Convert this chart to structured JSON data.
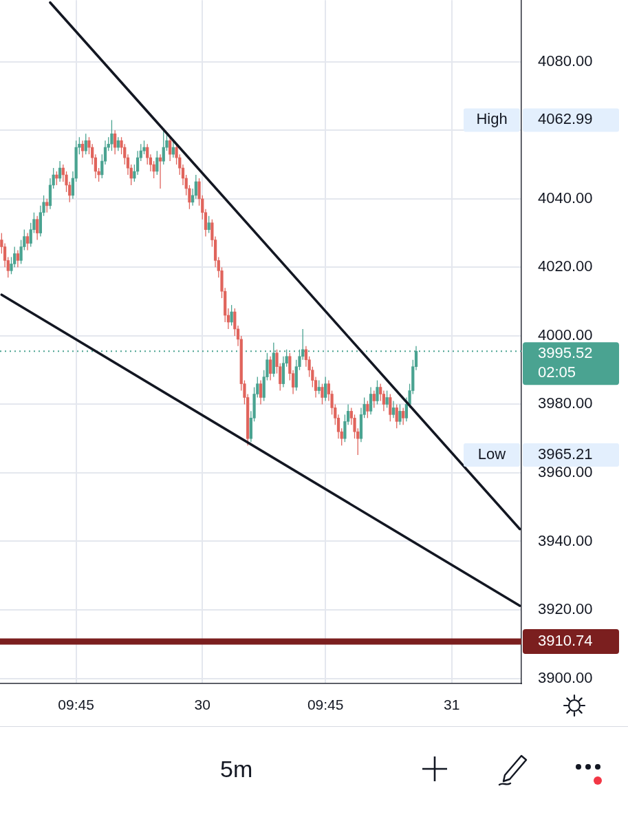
{
  "chart_data": {
    "type": "candlestick",
    "categories": [
      null,
      null,
      null,
      null,
      null,
      null,
      null,
      null,
      null,
      null,
      null,
      null,
      null,
      null,
      null,
      null,
      null,
      null,
      null,
      null,
      null,
      null,
      null,
      "09:45",
      null,
      null,
      null,
      null,
      null,
      null,
      null,
      null,
      null,
      null,
      null,
      null,
      null,
      null,
      null,
      null,
      null,
      null,
      null,
      null,
      null,
      null,
      null,
      null,
      null,
      null,
      null,
      null,
      null,
      null,
      null,
      null,
      null,
      null,
      null,
      null,
      null,
      null,
      "30",
      null,
      null,
      null,
      null,
      null,
      null,
      null,
      null,
      null,
      null,
      null,
      null,
      null,
      null,
      null,
      null,
      null,
      null,
      null,
      null,
      null,
      null,
      null,
      null,
      null,
      null,
      null,
      null,
      null,
      null,
      null,
      null,
      null,
      null,
      null,
      null,
      null,
      "09:45",
      null,
      null,
      null,
      null,
      null,
      null,
      null,
      null,
      null,
      null,
      null,
      null,
      null,
      null,
      null,
      null,
      null,
      null,
      null,
      null,
      null,
      null,
      null,
      null,
      null,
      null,
      null,
      null,
      null,
      null,
      null,
      null,
      null,
      null,
      null,
      null,
      null,
      null,
      "31",
      null,
      null,
      null,
      null,
      null,
      null,
      null,
      null,
      null,
      null,
      null,
      null,
      null,
      null,
      null,
      null,
      null,
      null,
      null,
      null,
      null
    ],
    "ohlc": [
      [
        4028,
        4030,
        4024,
        4026
      ],
      [
        4026,
        4027,
        4020,
        4022
      ],
      [
        4022,
        4023,
        4017,
        4019
      ],
      [
        4019,
        4023,
        4018,
        4021
      ],
      [
        4021,
        4026,
        4020,
        4024
      ],
      [
        4024,
        4025,
        4020,
        4022
      ],
      [
        4022,
        4028,
        4021,
        4026
      ],
      [
        4026,
        4031,
        4025,
        4029
      ],
      [
        4029,
        4030,
        4025,
        4027
      ],
      [
        4027,
        4033,
        4026,
        4031
      ],
      [
        4031,
        4036,
        4030,
        4034
      ],
      [
        4034,
        4035,
        4028,
        4030
      ],
      [
        4030,
        4038,
        4029,
        4036
      ],
      [
        4036,
        4041,
        4035,
        4039
      ],
      [
        4039,
        4040,
        4036,
        4038
      ],
      [
        4038,
        4046,
        4037,
        4044
      ],
      [
        4044,
        4049,
        4043,
        4047
      ],
      [
        4047,
        4048,
        4044,
        4046
      ],
      [
        4046,
        4051,
        4045,
        4049
      ],
      [
        4049,
        4050,
        4045,
        4047
      ],
      [
        4047,
        4048,
        4042,
        4044
      ],
      [
        4044,
        4045,
        4039,
        4041
      ],
      [
        4041,
        4048,
        4040,
        4046
      ],
      [
        4046,
        4057,
        4045,
        4055
      ],
      [
        4055,
        4058,
        4053,
        4056
      ],
      [
        4056,
        4057,
        4052,
        4054
      ],
      [
        4054,
        4059,
        4053,
        4057
      ],
      [
        4057,
        4058,
        4053,
        4055
      ],
      [
        4055,
        4056,
        4050,
        4052
      ],
      [
        4052,
        4053,
        4046,
        4048
      ],
      [
        4048,
        4049,
        4045,
        4047
      ],
      [
        4047,
        4053,
        4046,
        4051
      ],
      [
        4051,
        4057,
        4050,
        4055
      ],
      [
        4055,
        4058,
        4054,
        4056
      ],
      [
        4056,
        4062.99,
        4054,
        4059
      ],
      [
        4059,
        4060,
        4053,
        4055
      ],
      [
        4055,
        4058,
        4054,
        4057
      ],
      [
        4057,
        4058,
        4053,
        4055
      ],
      [
        4055,
        4056,
        4050,
        4052
      ],
      [
        4052,
        4053,
        4047,
        4049
      ],
      [
        4049,
        4050,
        4044,
        4046
      ],
      [
        4046,
        4050,
        4045,
        4048
      ],
      [
        4048,
        4054,
        4047,
        4052
      ],
      [
        4052,
        4056,
        4051,
        4054
      ],
      [
        4054,
        4057,
        4053,
        4055
      ],
      [
        4055,
        4056,
        4050,
        4052
      ],
      [
        4052,
        4053,
        4048,
        4050
      ],
      [
        4050,
        4051,
        4046,
        4048
      ],
      [
        4048,
        4054,
        4047,
        4052
      ],
      [
        4052,
        4053,
        4043,
        4051
      ],
      [
        4051,
        4060,
        4050,
        4055
      ],
      [
        4055,
        4059,
        4054,
        4057
      ],
      [
        4057,
        4058,
        4051,
        4053
      ],
      [
        4053,
        4057,
        4052,
        4055
      ],
      [
        4055,
        4056,
        4050,
        4052
      ],
      [
        4052,
        4053,
        4047,
        4049
      ],
      [
        4049,
        4050,
        4044,
        4046
      ],
      [
        4046,
        4047,
        4041,
        4043
      ],
      [
        4043,
        4044,
        4037,
        4039
      ],
      [
        4039,
        4043,
        4038,
        4041
      ],
      [
        4041,
        4047,
        4040,
        4045
      ],
      [
        4045,
        4046,
        4038,
        4040
      ],
      [
        4040,
        4041,
        4034,
        4036
      ],
      [
        4036,
        4037,
        4029,
        4031
      ],
      [
        4031,
        4035,
        4030,
        4033
      ],
      [
        4033,
        4034,
        4026,
        4028
      ],
      [
        4028,
        4029,
        4020,
        4022
      ],
      [
        4022,
        4023,
        4017,
        4019
      ],
      [
        4019,
        4020,
        4011,
        4013
      ],
      [
        4013,
        4014,
        4004,
        4006
      ],
      [
        4006,
        4008,
        4002,
        4004
      ],
      [
        4004,
        4009,
        4003,
        4007
      ],
      [
        4007,
        4008,
        4000,
        4002
      ],
      [
        4002,
        4003,
        3997,
        3999
      ],
      [
        3999,
        4000,
        3984,
        3986
      ],
      [
        3986,
        3987,
        3980,
        3982
      ],
      [
        3982,
        3983,
        3968,
        3970
      ],
      [
        3970,
        3978,
        3969,
        3976
      ],
      [
        3976,
        3985,
        3975,
        3983
      ],
      [
        3983,
        3988,
        3982,
        3986
      ],
      [
        3986,
        3987,
        3980,
        3982
      ],
      [
        3982,
        3990,
        3981,
        3988
      ],
      [
        3988,
        3995,
        3987,
        3993
      ],
      [
        3993,
        3994,
        3987,
        3989
      ],
      [
        3989,
        3998,
        3988,
        3995
      ],
      [
        3995,
        3996,
        3989,
        3991
      ],
      [
        3991,
        3992,
        3984,
        3986
      ],
      [
        3986,
        3994,
        3985,
        3992
      ],
      [
        3992,
        3996,
        3991,
        3994
      ],
      [
        3994,
        3995,
        3987,
        3989
      ],
      [
        3989,
        3990,
        3983,
        3985
      ],
      [
        3985,
        3993,
        3984,
        3991
      ],
      [
        3991,
        3996,
        3990,
        3994
      ],
      [
        3994,
        4002,
        3993,
        3996
      ],
      [
        3996,
        3997,
        3991,
        3993
      ],
      [
        3993,
        3994,
        3988,
        3990
      ],
      [
        3990,
        3991,
        3985,
        3987
      ],
      [
        3987,
        3988,
        3982,
        3984
      ],
      [
        3984,
        3987,
        3983,
        3985
      ],
      [
        3985,
        3986,
        3980,
        3982
      ],
      [
        3982,
        3988,
        3981,
        3986
      ],
      [
        3986,
        3987,
        3981,
        3983
      ],
      [
        3983,
        3984,
        3977,
        3979
      ],
      [
        3979,
        3980,
        3974,
        3976
      ],
      [
        3976,
        3977,
        3970,
        3972
      ],
      [
        3972,
        3973,
        3968,
        3970
      ],
      [
        3970,
        3977,
        3969,
        3975
      ],
      [
        3975,
        3980,
        3974,
        3978
      ],
      [
        3978,
        3979,
        3974,
        3976
      ],
      [
        3976,
        3977,
        3970,
        3972
      ],
      [
        3972,
        3973,
        3965.21,
        3970
      ],
      [
        3970,
        3979,
        3969,
        3977
      ],
      [
        3977,
        3982,
        3976,
        3980
      ],
      [
        3980,
        3981,
        3976,
        3978
      ],
      [
        3978,
        3985,
        3977,
        3983
      ],
      [
        3983,
        3984,
        3979,
        3981
      ],
      [
        3981,
        3987,
        3980,
        3985
      ],
      [
        3985,
        3986,
        3981,
        3983
      ],
      [
        3983,
        3984,
        3978,
        3980
      ],
      [
        3980,
        3984,
        3979,
        3982
      ],
      [
        3982,
        3983,
        3975,
        3977
      ],
      [
        3977,
        3981,
        3976,
        3979
      ],
      [
        3979,
        3980,
        3973,
        3975
      ],
      [
        3975,
        3980,
        3974,
        3978
      ],
      [
        3978,
        3979,
        3974,
        3976
      ],
      [
        3976,
        3982,
        3975,
        3980
      ],
      [
        3980,
        3986,
        3979,
        3984
      ],
      [
        3984,
        3993,
        3983,
        3991
      ],
      [
        3991,
        3997,
        3990,
        3995.52
      ],
      null,
      null,
      null,
      null,
      null,
      null,
      null,
      null,
      null,
      null,
      null,
      null,
      null,
      null,
      null,
      null,
      null,
      null,
      null,
      null,
      null,
      null,
      null,
      null,
      null,
      null,
      null,
      null,
      null,
      null,
      null,
      null
    ],
    "colors": [
      "#e0645c",
      "#e0645c",
      "#e0645c",
      "#4aa391",
      "#4aa391",
      "#e0645c",
      "#4aa391",
      "#4aa391",
      "#e0645c",
      "#4aa391",
      "#4aa391",
      "#e0645c",
      "#4aa391",
      "#4aa391",
      "#e0645c",
      "#4aa391",
      "#4aa391",
      "#e0645c",
      "#4aa391",
      "#e0645c",
      "#e0645c",
      "#e0645c",
      "#4aa391",
      "#4aa391",
      "#4aa391",
      "#e0645c",
      "#4aa391",
      "#e0645c",
      "#e0645c",
      "#e0645c",
      "#e0645c",
      "#4aa391",
      "#4aa391",
      "#4aa391",
      "#4aa391",
      "#e0645c",
      "#4aa391",
      "#e0645c",
      "#e0645c",
      "#e0645c",
      "#e0645c",
      "#4aa391",
      "#4aa391",
      "#4aa391",
      "#4aa391",
      "#e0645c",
      "#e0645c",
      "#e0645c",
      "#4aa391",
      "#e0645c",
      "#4aa391",
      "#4aa391",
      "#e0645c",
      "#4aa391",
      "#e0645c",
      "#e0645c",
      "#e0645c",
      "#e0645c",
      "#e0645c",
      "#4aa391",
      "#4aa391",
      "#e0645c",
      "#e0645c",
      "#e0645c",
      "#4aa391",
      "#e0645c",
      "#e0645c",
      "#e0645c",
      "#e0645c",
      "#e0645c",
      "#e0645c",
      "#4aa391",
      "#e0645c",
      "#e0645c",
      "#e0645c",
      "#e0645c",
      "#e0645c",
      "#4aa391",
      "#4aa391",
      "#4aa391",
      "#e0645c",
      "#4aa391",
      "#4aa391",
      "#e0645c",
      "#4aa391",
      "#e0645c",
      "#e0645c",
      "#4aa391",
      "#4aa391",
      "#e0645c",
      "#e0645c",
      "#4aa391",
      "#4aa391",
      "#4aa391",
      "#e0645c",
      "#e0645c",
      "#e0645c",
      "#e0645c",
      "#4aa391",
      "#e0645c",
      "#4aa391",
      "#e0645c",
      "#e0645c",
      "#e0645c",
      "#e0645c",
      "#e0645c",
      "#4aa391",
      "#4aa391",
      "#e0645c",
      "#e0645c",
      "#e0645c",
      "#4aa391",
      "#4aa391",
      "#e0645c",
      "#4aa391",
      "#e0645c",
      "#4aa391",
      "#e0645c",
      "#e0645c",
      "#4aa391",
      "#e0645c",
      "#4aa391",
      "#e0645c",
      "#4aa391",
      "#e0645c",
      "#4aa391",
      "#4aa391",
      "#4aa391",
      "#4aa391",
      null,
      null,
      null,
      null,
      null,
      null,
      null,
      null,
      null,
      null,
      null,
      null,
      null,
      null,
      null,
      null,
      null,
      null,
      null,
      null,
      null,
      null,
      null,
      null,
      null,
      null,
      null,
      null,
      null,
      null,
      null,
      null
    ],
    "series": [
      {
        "type": "line",
        "color": "#131722",
        "values": [
          null,
          null,
          null,
          null,
          null,
          null,
          null,
          null,
          null,
          null,
          null,
          null,
          null,
          null,
          null,
          4097.3,
          null,
          null,
          null,
          null,
          null,
          null,
          null,
          null,
          null,
          null,
          null,
          null,
          null,
          null,
          null,
          null,
          null,
          null,
          null,
          null,
          null,
          null,
          null,
          null,
          null,
          null,
          null,
          null,
          null,
          null,
          null,
          null,
          null,
          null,
          null,
          null,
          null,
          null,
          null,
          null,
          null,
          null,
          null,
          null,
          null,
          null,
          null,
          null,
          null,
          null,
          null,
          null,
          null,
          null,
          null,
          null,
          null,
          null,
          null,
          null,
          null,
          null,
          null,
          null,
          null,
          null,
          null,
          null,
          null,
          null,
          null,
          null,
          null,
          null,
          null,
          null,
          null,
          null,
          null,
          null,
          null,
          null,
          null,
          null,
          null,
          null,
          null,
          null,
          null,
          null,
          null,
          null,
          null,
          null,
          null,
          null,
          null,
          null,
          null,
          null,
          null,
          null,
          null,
          null,
          null,
          null,
          null,
          null,
          null,
          null,
          null,
          null,
          null,
          null,
          null,
          null,
          null,
          null,
          null,
          null,
          null,
          null,
          null,
          null,
          null,
          null,
          null,
          null,
          null,
          null,
          null,
          null,
          null,
          null,
          null,
          null,
          null,
          null,
          null,
          null,
          null,
          null,
          null,
          null,
          3943.6
        ]
      },
      {
        "type": "line",
        "color": "#131722",
        "values": [
          4012.0,
          null,
          null,
          null,
          null,
          null,
          null,
          null,
          null,
          null,
          null,
          null,
          null,
          null,
          null,
          null,
          null,
          null,
          null,
          null,
          null,
          null,
          null,
          null,
          null,
          null,
          null,
          null,
          null,
          null,
          null,
          null,
          null,
          null,
          null,
          null,
          null,
          null,
          null,
          null,
          null,
          null,
          null,
          null,
          null,
          null,
          null,
          null,
          null,
          null,
          null,
          null,
          null,
          null,
          null,
          null,
          null,
          null,
          null,
          null,
          null,
          null,
          null,
          null,
          null,
          null,
          null,
          null,
          null,
          null,
          null,
          null,
          null,
          null,
          null,
          null,
          null,
          null,
          null,
          null,
          null,
          null,
          null,
          null,
          null,
          null,
          null,
          null,
          null,
          null,
          null,
          null,
          null,
          null,
          null,
          null,
          null,
          null,
          null,
          null,
          null,
          null,
          null,
          null,
          null,
          null,
          null,
          null,
          null,
          null,
          null,
          null,
          null,
          null,
          null,
          null,
          null,
          null,
          null,
          null,
          null,
          null,
          null,
          null,
          null,
          null,
          null,
          null,
          null,
          null,
          null,
          null,
          null,
          null,
          null,
          null,
          null,
          null,
          null,
          null,
          null,
          null,
          null,
          null,
          null,
          null,
          null,
          null,
          null,
          null,
          null,
          null,
          null,
          null,
          null,
          null,
          null,
          null,
          null,
          null,
          3921.2
        ]
      }
    ],
    "ylim": [
      3898.5,
      4098
    ],
    "yticks": [
      {
        "value": 3900,
        "label": "3900.00"
      },
      {
        "value": 3920,
        "label": "3920.00"
      },
      {
        "value": 3940,
        "label": "3940.00"
      },
      {
        "value": 3960,
        "label": "3960.00"
      },
      {
        "value": 3980,
        "label": "3980.00"
      },
      {
        "value": 4000,
        "label": "4000.00"
      },
      {
        "value": 4020,
        "label": "4020.00"
      },
      {
        "value": 4040,
        "label": "4040.00"
      },
      {
        "value": 4060,
        "label": null
      },
      {
        "value": 4080,
        "label": "4080.00"
      }
    ],
    "grid": true,
    "ref_lines": [
      {
        "axis": "y",
        "value": 3995.52,
        "label": "3995.52",
        "color": "#4aa391",
        "line_style": "dotted"
      },
      {
        "axis": "y",
        "value": 3910.74,
        "label": "3910.74",
        "color": "#7b1f1f",
        "line_style": "solid"
      }
    ],
    "annotations": [
      "High",
      "4062.99",
      "Low",
      "3965.21",
      "02:05",
      "5m"
    ]
  }
}
